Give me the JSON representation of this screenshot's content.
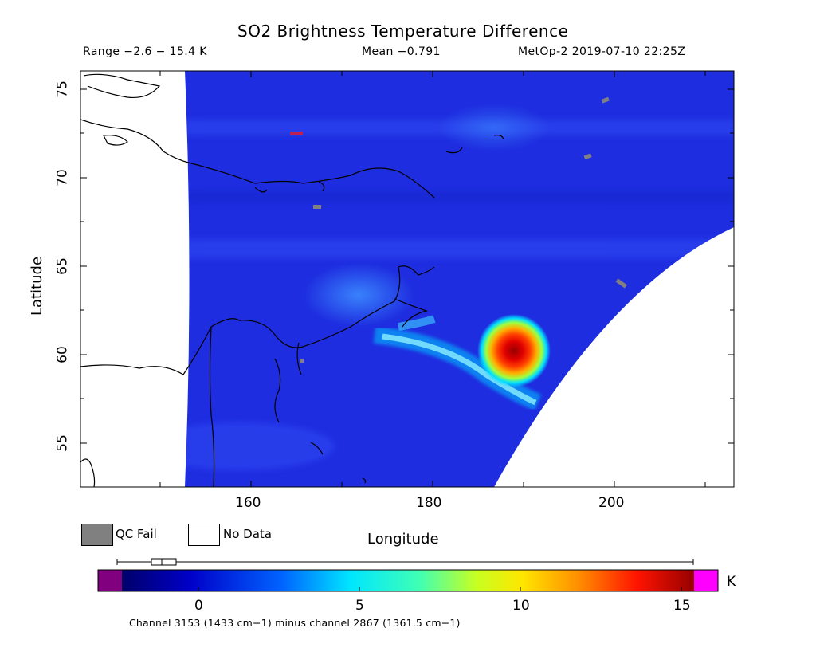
{
  "header": {
    "title": "SO2 Brightness Temperature Difference",
    "range": "Range −2.6 − 15.4 K",
    "mean": "Mean −0.791",
    "satellite": "MetOp-2 2019-07-10 22:25Z"
  },
  "axes": {
    "x_label": "Longitude",
    "y_label": "Latitude",
    "x_ticks": [
      "160",
      "180",
      "200"
    ],
    "y_ticks": [
      "75",
      "70",
      "65",
      "60",
      "55"
    ]
  },
  "legend": {
    "qc_fail": "QC Fail",
    "no_data": "No Data",
    "qc_fail_color": "#808080",
    "no_data_color": "#ffffff"
  },
  "colorbar": {
    "ticks": [
      "0",
      "5",
      "10",
      "15"
    ],
    "unit": "K",
    "caption": "Channel 3153 (1433 cm−1) minus channel 2867 (1361.5 cm−1)",
    "under_color": "#800080",
    "over_color": "#ff00ff"
  },
  "map": {
    "lon_range": [
      141,
      213
    ],
    "lat_range": [
      52.5,
      76
    ],
    "background_color": "#1e2de0",
    "plume_peak_location": {
      "lon": 189,
      "lat": 60
    },
    "coastline_color": "#000000"
  }
}
